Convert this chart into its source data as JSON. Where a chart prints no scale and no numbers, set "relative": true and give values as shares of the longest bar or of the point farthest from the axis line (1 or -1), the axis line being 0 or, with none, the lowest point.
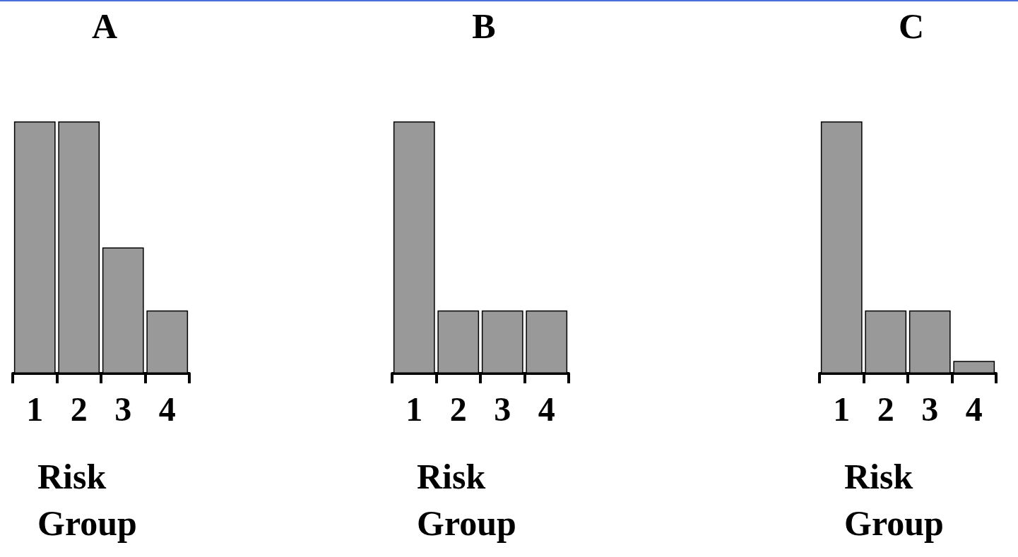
{
  "chart_data": [
    {
      "type": "bar",
      "title": "A",
      "categories": [
        "1",
        "2",
        "3",
        "4"
      ],
      "values": [
        1,
        1,
        0.5,
        0.25
      ],
      "color": "#999999",
      "relative": true,
      "xlabel": "Risk Group"
    },
    {
      "type": "bar",
      "title": "B",
      "categories": [
        "1",
        "2",
        "3",
        "4"
      ],
      "values": [
        1,
        0.25,
        0.25,
        0.25
      ],
      "color": "#999999",
      "relative": true,
      "xlabel": "Risk Group"
    },
    {
      "type": "bar",
      "title": "C",
      "categories": [
        "1",
        "2",
        "3",
        "4"
      ],
      "values": [
        1,
        0.25,
        0.25,
        0.05
      ],
      "color": "#999999",
      "relative": true,
      "xlabel": "Risk Group"
    }
  ]
}
